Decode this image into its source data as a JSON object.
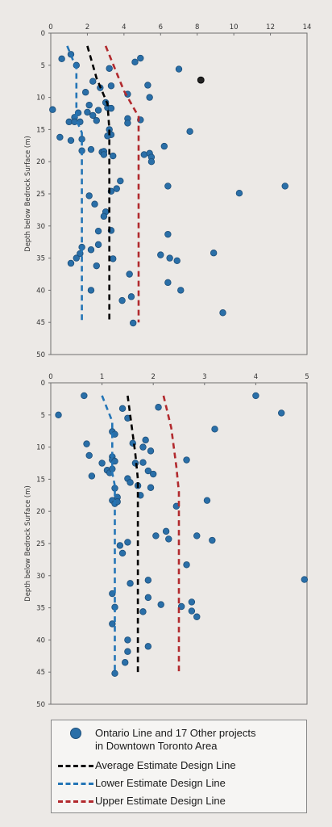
{
  "chart_data": [
    {
      "type": "scatter",
      "ylabel": "Depth below Bedrock Surface (m)",
      "xlim": [
        0,
        14
      ],
      "ylim": [
        0,
        50
      ],
      "x_ticks": [
        "0",
        "2",
        "4",
        "6",
        "8",
        "10",
        "12",
        "14"
      ],
      "y_ticks": [
        "0",
        "5",
        "10",
        "15",
        "20",
        "25",
        "30",
        "35",
        "40",
        "45",
        "50"
      ],
      "points": [
        [
          0.6,
          4
        ],
        [
          1.1,
          3.3
        ],
        [
          1.4,
          5
        ],
        [
          1.9,
          9.2
        ],
        [
          2.3,
          7.5
        ],
        [
          2.7,
          8.5
        ],
        [
          3.3,
          8.2
        ],
        [
          3.2,
          5.5
        ],
        [
          4.6,
          4.5
        ],
        [
          4.9,
          3.9
        ],
        [
          7.0,
          5.6
        ],
        [
          5.3,
          8.1
        ],
        [
          5.4,
          10
        ],
        [
          4.2,
          9.5
        ],
        [
          3.0,
          10.8
        ],
        [
          3.1,
          11.6
        ],
        [
          3.3,
          11.7
        ],
        [
          2.6,
          12
        ],
        [
          2.1,
          11.2
        ],
        [
          2.3,
          12.8
        ],
        [
          2.0,
          12.3
        ],
        [
          1.5,
          12.4
        ],
        [
          1.3,
          13.1
        ],
        [
          1.0,
          13.8
        ],
        [
          1.3,
          13.8
        ],
        [
          1.6,
          13.8
        ],
        [
          0.1,
          11.9
        ],
        [
          2.5,
          13.6
        ],
        [
          4.2,
          13.3
        ],
        [
          4.2,
          14
        ],
        [
          4.9,
          13.5
        ],
        [
          3.2,
          15
        ],
        [
          3.3,
          15.8
        ],
        [
          3.1,
          16
        ],
        [
          7.6,
          15.3
        ],
        [
          0.5,
          16.2
        ],
        [
          1.1,
          16.7
        ],
        [
          1.7,
          16.5
        ],
        [
          1.7,
          18.3
        ],
        [
          2.2,
          18.1
        ],
        [
          2.8,
          18.5
        ],
        [
          2.9,
          18.4
        ],
        [
          2.9,
          18.9
        ],
        [
          3.4,
          19.1
        ],
        [
          5.1,
          18.9
        ],
        [
          5.4,
          18.7
        ],
        [
          5.5,
          19.3
        ],
        [
          5.5,
          20
        ],
        [
          6.2,
          17.6
        ],
        [
          3.8,
          23
        ],
        [
          3.6,
          24.2
        ],
        [
          3.3,
          24.6
        ],
        [
          6.4,
          23.8
        ],
        [
          2.1,
          25.3
        ],
        [
          2.4,
          26.6
        ],
        [
          3.0,
          27.8
        ],
        [
          2.9,
          28.5
        ],
        [
          10.3,
          24.9
        ],
        [
          12.8,
          23.8
        ],
        [
          2.6,
          30.8
        ],
        [
          3.3,
          30.7
        ],
        [
          6.4,
          31.3
        ],
        [
          2.6,
          32.9
        ],
        [
          1.7,
          33.3
        ],
        [
          1.6,
          34.3
        ],
        [
          2.2,
          33.7
        ],
        [
          1.1,
          35.8
        ],
        [
          1.4,
          35.0
        ],
        [
          2.5,
          36.2
        ],
        [
          3.4,
          35.1
        ],
        [
          6.0,
          34.5
        ],
        [
          6.5,
          35
        ],
        [
          6.9,
          35.4
        ],
        [
          8.9,
          34.2
        ],
        [
          4.3,
          37.5
        ],
        [
          6.4,
          38.8
        ],
        [
          7.1,
          40
        ],
        [
          2.2,
          40
        ],
        [
          3.9,
          41.6
        ],
        [
          4.4,
          41
        ],
        [
          4.5,
          45.1
        ],
        [
          9.4,
          43.5
        ],
        [
          8.2,
          7.3
        ]
      ],
      "highlight_point": [
        8.2,
        7.3
      ],
      "series": [
        {
          "name": "Average Estimate Design Line",
          "color": "#000000",
          "points": [
            [
              2.0,
              2
            ],
            [
              2.5,
              7
            ],
            [
              3.1,
              11
            ],
            [
              3.2,
              15
            ],
            [
              3.2,
              45
            ]
          ]
        },
        {
          "name": "Lower Estimate Design Line",
          "color": "#2475b6",
          "points": [
            [
              0.9,
              2
            ],
            [
              1.4,
              5.5
            ],
            [
              1.4,
              13.5
            ],
            [
              1.7,
              15.5
            ],
            [
              1.7,
              45
            ]
          ]
        },
        {
          "name": "Upper Estimate Design Line",
          "color": "#b22a2e",
          "points": [
            [
              3.0,
              2
            ],
            [
              4.0,
              9
            ],
            [
              4.8,
              13
            ],
            [
              4.8,
              45
            ]
          ]
        }
      ]
    },
    {
      "type": "scatter",
      "ylabel": "Depth below Bedrock Surface (m)",
      "xlim": [
        0,
        5
      ],
      "ylim": [
        0,
        50
      ],
      "x_ticks": [
        "0",
        "1",
        "2",
        "3",
        "4",
        "5"
      ],
      "y_ticks": [
        "0",
        "5",
        "10",
        "15",
        "20",
        "25",
        "30",
        "35",
        "40",
        "45",
        "50"
      ],
      "points": [
        [
          0.65,
          2
        ],
        [
          0.15,
          5
        ],
        [
          1.4,
          4
        ],
        [
          1.5,
          5.5
        ],
        [
          2.1,
          3.8
        ],
        [
          4.0,
          2
        ],
        [
          4.5,
          4.7
        ],
        [
          3.2,
          7.2
        ],
        [
          1.2,
          7.6
        ],
        [
          1.25,
          8
        ],
        [
          1.6,
          9.4
        ],
        [
          1.85,
          8.9
        ],
        [
          1.8,
          10
        ],
        [
          1.95,
          10.6
        ],
        [
          0.7,
          9.5
        ],
        [
          0.75,
          11.3
        ],
        [
          1.0,
          12.5
        ],
        [
          1.2,
          11.5
        ],
        [
          1.2,
          12
        ],
        [
          1.25,
          12.2
        ],
        [
          1.65,
          12.5
        ],
        [
          1.8,
          12.4
        ],
        [
          1.9,
          13.7
        ],
        [
          2.0,
          14.2
        ],
        [
          1.1,
          13.6
        ],
        [
          1.15,
          14
        ],
        [
          1.2,
          13.4
        ],
        [
          0.8,
          14.5
        ],
        [
          1.5,
          14.9
        ],
        [
          1.55,
          15.5
        ],
        [
          2.65,
          12
        ],
        [
          1.7,
          16
        ],
        [
          1.95,
          16.3
        ],
        [
          1.25,
          16.4
        ],
        [
          1.3,
          17.8
        ],
        [
          1.75,
          17.5
        ],
        [
          1.2,
          18.3
        ],
        [
          1.25,
          18.8
        ],
        [
          1.3,
          18.5
        ],
        [
          3.05,
          18.3
        ],
        [
          2.45,
          19.2
        ],
        [
          2.25,
          23.1
        ],
        [
          2.05,
          23.8
        ],
        [
          2.3,
          24.3
        ],
        [
          2.85,
          23.8
        ],
        [
          3.15,
          24.5
        ],
        [
          1.5,
          24.8
        ],
        [
          1.35,
          25.3
        ],
        [
          1.4,
          26.5
        ],
        [
          2.65,
          28.3
        ],
        [
          4.95,
          30.6
        ],
        [
          1.9,
          30.7
        ],
        [
          1.55,
          31.2
        ],
        [
          1.9,
          33.4
        ],
        [
          1.2,
          32.8
        ],
        [
          1.25,
          34.9
        ],
        [
          1.8,
          35.6
        ],
        [
          2.15,
          34.5
        ],
        [
          2.55,
          34.8
        ],
        [
          2.75,
          34.1
        ],
        [
          2.75,
          35.5
        ],
        [
          2.85,
          36.4
        ],
        [
          1.2,
          37.5
        ],
        [
          1.5,
          40
        ],
        [
          1.9,
          41
        ],
        [
          1.5,
          41.8
        ],
        [
          1.45,
          43.5
        ],
        [
          1.25,
          45.2
        ]
      ],
      "series": [
        {
          "name": "Average Estimate Design Line",
          "color": "#000000",
          "points": [
            [
              1.5,
              2
            ],
            [
              1.65,
              11
            ],
            [
              1.7,
              15
            ],
            [
              1.7,
              45
            ]
          ]
        },
        {
          "name": "Lower Estimate Design Line",
          "color": "#2475b6",
          "points": [
            [
              1.0,
              2
            ],
            [
              1.2,
              6
            ],
            [
              1.2,
              14
            ],
            [
              1.25,
              16
            ],
            [
              1.25,
              45
            ]
          ]
        },
        {
          "name": "Upper Estimate Design Line",
          "color": "#b22a2e",
          "points": [
            [
              2.2,
              2
            ],
            [
              2.35,
              7
            ],
            [
              2.45,
              13
            ],
            [
              2.5,
              17
            ],
            [
              2.5,
              45
            ]
          ]
        }
      ]
    }
  ],
  "legend": {
    "points_label_1": "Ontario Line and 17 Other projects",
    "points_label_2": "in Downtown Toronto Area",
    "average_label": "Average Estimate Design Line",
    "lower_label": "Lower Estimate Design Line",
    "upper_label": "Upper Estimate Design Line"
  },
  "colors": {
    "point_fill": "#2a6fa8",
    "point_stroke": "#1d4f7a",
    "highlight_fill": "#222222",
    "average": "#000000",
    "lower": "#2475b6",
    "upper": "#b22a2e"
  }
}
